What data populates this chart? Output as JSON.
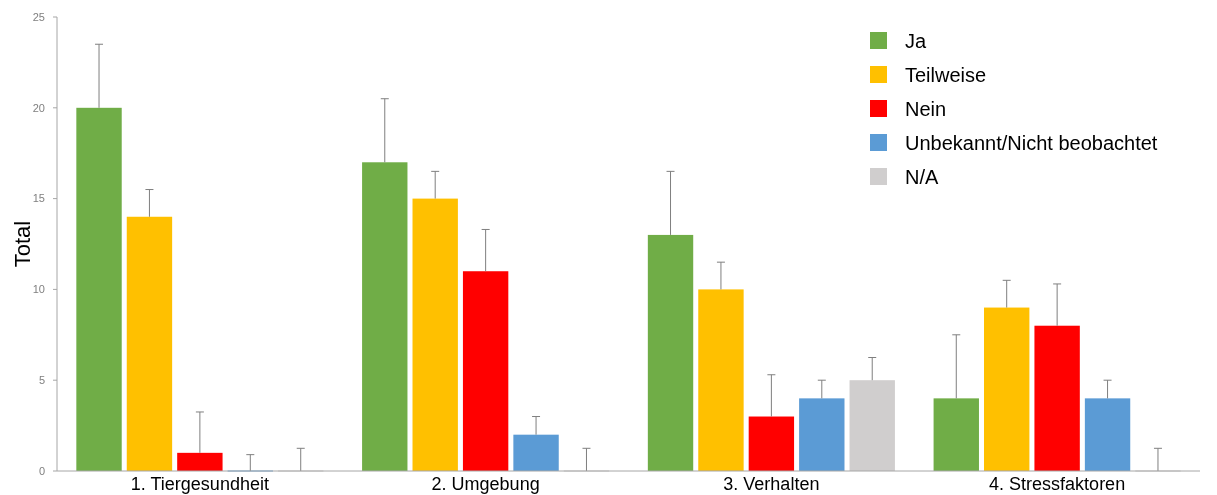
{
  "chart_data": {
    "type": "bar",
    "ylabel": "Total",
    "categories": [
      "1. Tiergesundheit",
      "2. Umgebung",
      "3. Verhalten",
      "4. Stressfaktoren"
    ],
    "series": [
      {
        "name": "Ja",
        "color": "#70ad47",
        "values": [
          20,
          17,
          13,
          4
        ],
        "errors": [
          [
            20,
            23.5
          ],
          [
            17,
            20.5
          ],
          [
            13,
            16.5
          ],
          [
            4,
            7.5
          ]
        ]
      },
      {
        "name": "Teilweise",
        "color": "#ffc000",
        "values": [
          14,
          15,
          10,
          9
        ],
        "errors": [
          [
            14,
            15.5
          ],
          [
            15,
            16.5
          ],
          [
            10,
            11.5
          ],
          [
            9,
            10.5
          ]
        ]
      },
      {
        "name": "Nein",
        "color": "#ff0000",
        "values": [
          1,
          11,
          3,
          8
        ],
        "errors": [
          [
            1,
            3.25
          ],
          [
            11,
            13.3
          ],
          [
            3,
            5.3
          ],
          [
            8,
            10.3
          ]
        ]
      },
      {
        "name": "Unbekannt/Nicht beobachtet",
        "color": "#5b9bd5",
        "values": [
          0,
          2,
          4,
          4
        ],
        "errors": [
          [
            0,
            0.9
          ],
          [
            2,
            3
          ],
          [
            4,
            5
          ],
          [
            4,
            5
          ]
        ]
      },
      {
        "name": "N/A",
        "color": "#d0cece",
        "values": [
          0,
          0,
          5,
          0
        ],
        "errors": [
          [
            0,
            1.25
          ],
          [
            0,
            1.25
          ],
          [
            5,
            6.25
          ],
          [
            0,
            1.25
          ]
        ]
      }
    ],
    "ylim": [
      0,
      25
    ],
    "yticks": [
      0,
      5,
      10,
      15,
      20,
      25
    ],
    "legend": "top right"
  }
}
